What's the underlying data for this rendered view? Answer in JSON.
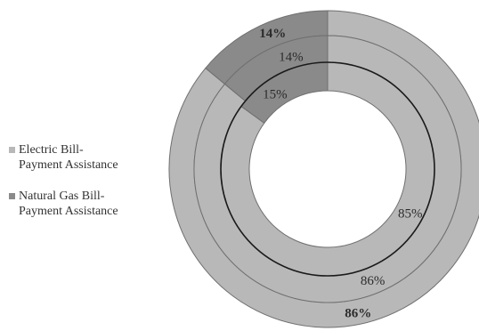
{
  "colors": {
    "electric": "#b8b8b8",
    "gas": "#8a8a8a",
    "ring_line": "#6f6f6f",
    "inner_line": "#1a1a1a",
    "hole": "#ffffff",
    "label_text": "#2c2c2c"
  },
  "legend": {
    "items": [
      {
        "label": "Electric Bill-Payment Assistance",
        "color": "#b8b8b8"
      },
      {
        "label": "Natural Gas Bill-Payment Assistance",
        "color": "#8a8a8a"
      }
    ]
  },
  "chart_data": {
    "type": "pie",
    "subtype": "nested-donut",
    "title": "",
    "categories": [
      "Electric Bill-Payment Assistance",
      "Natural Gas Bill-Payment Assistance"
    ],
    "series": [
      {
        "ring": "outer",
        "values": [
          86,
          14
        ],
        "labels": [
          "86%",
          "14%"
        ]
      },
      {
        "ring": "middle",
        "values": [
          86,
          14
        ],
        "labels": [
          "86%",
          "14%"
        ]
      },
      {
        "ring": "inner",
        "values": [
          85,
          15
        ],
        "labels": [
          "85%",
          "15%"
        ]
      }
    ],
    "legend_position": "left"
  }
}
